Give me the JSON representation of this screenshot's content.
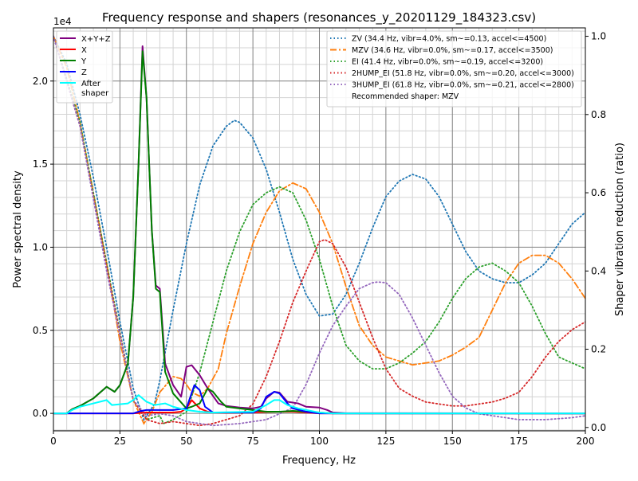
{
  "chart_data": {
    "type": "line",
    "title": "Frequency response and shapers (resonances_y_20201129_184323.csv)",
    "xlabel": "Frequency, Hz",
    "ylabel": "Power spectral density",
    "ylabel_right": "Shaper vibration reduction (ratio)",
    "y_offset_label": "1e4",
    "xlim": [
      0,
      200
    ],
    "ylim": [
      -1050,
      23200
    ],
    "ylim_right": [
      -0.0086,
      1.0215
    ],
    "xticks": [
      0,
      25,
      50,
      75,
      100,
      125,
      150,
      175,
      200
    ],
    "xtick_labels": [
      "0",
      "25",
      "50",
      "75",
      "100",
      "125",
      "150",
      "175",
      "200"
    ],
    "yticks": [
      0,
      5000,
      10000,
      15000,
      20000
    ],
    "ytick_labels": [
      "0.0",
      "0.5",
      "1.0",
      "1.5",
      "2.0"
    ],
    "yticks_right": [
      0,
      0.2,
      0.4,
      0.6,
      0.8,
      1.0
    ],
    "ytick_labels_right": [
      "0.0",
      "0.2",
      "0.4",
      "0.6",
      "0.8",
      "1.0"
    ],
    "grid": "major and minor",
    "legend_left_placement": "top-left",
    "legend_right_placement": "top-right",
    "psd_series": [
      {
        "name": "X+Y+Z",
        "color": "#800080",
        "style": "solid",
        "x": [
          0,
          5,
          7,
          10,
          15,
          20,
          23,
          25,
          28,
          30,
          32,
          33.5,
          35,
          37,
          38.5,
          40,
          42,
          45,
          48,
          50,
          52,
          55,
          58,
          62,
          65,
          70,
          75,
          78,
          80,
          83,
          85,
          88,
          90,
          92,
          95,
          100,
          103,
          105,
          110,
          200
        ],
        "y": [
          0,
          0,
          250,
          450,
          900,
          1600,
          1300,
          1700,
          3000,
          7000,
          15000,
          22100,
          19000,
          11000,
          7700,
          7500,
          3000,
          1700,
          1000,
          2800,
          2900,
          2300,
          1500,
          600,
          450,
          350,
          300,
          400,
          900,
          1300,
          1250,
          700,
          650,
          600,
          400,
          350,
          200,
          50,
          10,
          0
        ]
      },
      {
        "name": "X",
        "color": "#ff0000",
        "style": "solid",
        "x": [
          0,
          30,
          35,
          45,
          48,
          50,
          52,
          55,
          58,
          60,
          65,
          80,
          85,
          90,
          95,
          100,
          200
        ],
        "y": [
          0,
          0,
          50,
          50,
          100,
          300,
          800,
          300,
          100,
          50,
          30,
          80,
          100,
          100,
          50,
          0,
          0
        ]
      },
      {
        "name": "Y",
        "color": "#008000",
        "style": "solid",
        "x": [
          0,
          5,
          7,
          10,
          15,
          20,
          23,
          25,
          28,
          30,
          32,
          33.5,
          35,
          37,
          38.5,
          40,
          42,
          45,
          50,
          52,
          55,
          57,
          58,
          60,
          63,
          65,
          70,
          75,
          80,
          85,
          90,
          95,
          100,
          105,
          200
        ],
        "y": [
          0,
          0,
          250,
          450,
          900,
          1600,
          1300,
          1700,
          3000,
          7000,
          15000,
          21800,
          19000,
          11000,
          7500,
          7300,
          2500,
          1200,
          300,
          400,
          600,
          1200,
          1500,
          1300,
          700,
          400,
          300,
          200,
          100,
          100,
          150,
          100,
          50,
          0,
          0
        ]
      },
      {
        "name": "Z",
        "color": "#0000ff",
        "style": "solid",
        "x": [
          0,
          30,
          33,
          35,
          40,
          45,
          50,
          53,
          55,
          57,
          60,
          75,
          78,
          80,
          83,
          85,
          88,
          90,
          95,
          100,
          200
        ],
        "y": [
          0,
          0,
          150,
          200,
          200,
          200,
          300,
          1700,
          1400,
          400,
          50,
          50,
          300,
          1000,
          1300,
          1200,
          600,
          300,
          100,
          0,
          0
        ]
      },
      {
        "name": "After\nshaper",
        "color": "#00ffff",
        "style": "solid",
        "x": [
          0,
          5,
          7,
          10,
          15,
          20,
          22,
          25,
          28,
          30,
          32,
          35,
          38,
          42,
          45,
          50,
          55,
          60,
          75,
          80,
          83,
          85,
          88,
          92,
          100,
          105,
          200
        ],
        "y": [
          0,
          0,
          200,
          400,
          600,
          800,
          500,
          550,
          600,
          800,
          1100,
          700,
          500,
          600,
          400,
          200,
          100,
          50,
          100,
          500,
          800,
          800,
          500,
          300,
          50,
          0,
          0
        ]
      }
    ],
    "shaper_series": [
      {
        "name": "ZV (34.4 Hz, vibr=4.0%, sm~=0.13, accel<=4500)",
        "color": "#1f77b4",
        "style": "dotted",
        "x": [
          0,
          5,
          10,
          15,
          20,
          25,
          30,
          34,
          38,
          40,
          45,
          50,
          55,
          60,
          65,
          68,
          70,
          75,
          80,
          85,
          90,
          95,
          100,
          105,
          110,
          115,
          120,
          125,
          130,
          135,
          140,
          145,
          150,
          155,
          160,
          165,
          170,
          175,
          180,
          185,
          190,
          195,
          200
        ],
        "y": [
          1.0,
          0.93,
          0.8,
          0.64,
          0.46,
          0.27,
          0.1,
          0.02,
          0.06,
          0.12,
          0.3,
          0.47,
          0.62,
          0.72,
          0.77,
          0.785,
          0.78,
          0.74,
          0.66,
          0.55,
          0.43,
          0.34,
          0.285,
          0.29,
          0.34,
          0.42,
          0.51,
          0.59,
          0.63,
          0.647,
          0.635,
          0.59,
          0.52,
          0.45,
          0.4,
          0.38,
          0.37,
          0.37,
          0.39,
          0.42,
          0.47,
          0.52,
          0.55
        ]
      },
      {
        "name": "MZV (34.6 Hz, vibr=0.0%, sm~=0.17, accel<=3500)",
        "color": "#ff7f0e",
        "style": "dashdot",
        "x": [
          0,
          5,
          10,
          15,
          20,
          25,
          30,
          34,
          37,
          40,
          45,
          48,
          50,
          52,
          55,
          58,
          62,
          65,
          70,
          75,
          80,
          85,
          90,
          95,
          100,
          105,
          110,
          115,
          120,
          125,
          130,
          135,
          140,
          145,
          150,
          155,
          160,
          165,
          170,
          175,
          180,
          185,
          190,
          195,
          200
        ],
        "y": [
          1.0,
          0.92,
          0.78,
          0.6,
          0.42,
          0.22,
          0.07,
          0.01,
          0.04,
          0.09,
          0.13,
          0.125,
          0.11,
          0.09,
          0.08,
          0.1,
          0.15,
          0.24,
          0.36,
          0.47,
          0.55,
          0.605,
          0.625,
          0.61,
          0.55,
          0.47,
          0.36,
          0.26,
          0.21,
          0.18,
          0.17,
          0.16,
          0.165,
          0.17,
          0.185,
          0.205,
          0.23,
          0.3,
          0.37,
          0.42,
          0.44,
          0.44,
          0.42,
          0.38,
          0.33
        ]
      },
      {
        "name": "EI (41.4 Hz, vibr=0.0%, sm~=0.19, accel<=3200)",
        "color": "#2ca02c",
        "style": "dotted",
        "x": [
          0,
          10,
          20,
          30,
          35,
          40,
          41.4,
          45,
          50,
          55,
          60,
          65,
          70,
          75,
          80,
          85,
          90,
          95,
          100,
          105,
          110,
          115,
          120,
          125,
          130,
          135,
          140,
          145,
          150,
          155,
          160,
          165,
          170,
          175,
          180,
          185,
          190,
          195,
          200
        ],
        "y": [
          1.0,
          0.78,
          0.42,
          0.07,
          0.02,
          0.03,
          0.01,
          0.02,
          0.04,
          0.14,
          0.27,
          0.4,
          0.5,
          0.57,
          0.6,
          0.615,
          0.6,
          0.53,
          0.43,
          0.31,
          0.21,
          0.17,
          0.15,
          0.15,
          0.165,
          0.19,
          0.22,
          0.27,
          0.33,
          0.38,
          0.41,
          0.42,
          0.4,
          0.37,
          0.31,
          0.24,
          0.18,
          0.165,
          0.15
        ]
      },
      {
        "name": "2HUMP_EI (51.8 Hz, vibr=0.0%, sm~=0.20, accel<=3000)",
        "color": "#d62728",
        "style": "dotted",
        "x": [
          0,
          10,
          20,
          30,
          35,
          40,
          45,
          50,
          55,
          60,
          65,
          70,
          75,
          80,
          85,
          90,
          95,
          100,
          102,
          105,
          110,
          115,
          120,
          125,
          130,
          135,
          140,
          145,
          150,
          155,
          160,
          165,
          170,
          175,
          180,
          185,
          190,
          195,
          200
        ],
        "y": [
          1.0,
          0.77,
          0.41,
          0.07,
          0.02,
          0.01,
          0.015,
          0.01,
          0.005,
          0.01,
          0.02,
          0.03,
          0.06,
          0.13,
          0.22,
          0.32,
          0.4,
          0.475,
          0.48,
          0.47,
          0.41,
          0.32,
          0.23,
          0.15,
          0.1,
          0.08,
          0.065,
          0.06,
          0.055,
          0.055,
          0.06,
          0.065,
          0.075,
          0.09,
          0.13,
          0.18,
          0.22,
          0.25,
          0.27
        ]
      },
      {
        "name": "3HUMP_EI (61.8 Hz, vibr=0.0%, sm~=0.21, accel<=2800)",
        "color": "#9467bd",
        "style": "dotted",
        "x": [
          0,
          10,
          20,
          30,
          35,
          40,
          45,
          50,
          55,
          60,
          70,
          80,
          90,
          95,
          100,
          105,
          110,
          115,
          120,
          122,
          125,
          130,
          135,
          140,
          145,
          150,
          155,
          160,
          165,
          170,
          175,
          185,
          195,
          200
        ],
        "y": [
          1.0,
          0.77,
          0.4,
          0.07,
          0.03,
          0.035,
          0.03,
          0.015,
          0.01,
          0.005,
          0.01,
          0.02,
          0.05,
          0.11,
          0.19,
          0.26,
          0.31,
          0.355,
          0.37,
          0.372,
          0.37,
          0.34,
          0.28,
          0.21,
          0.14,
          0.08,
          0.05,
          0.035,
          0.03,
          0.025,
          0.02,
          0.02,
          0.025,
          0.03
        ]
      }
    ],
    "recommendation": "Recommended shaper: MZV"
  }
}
